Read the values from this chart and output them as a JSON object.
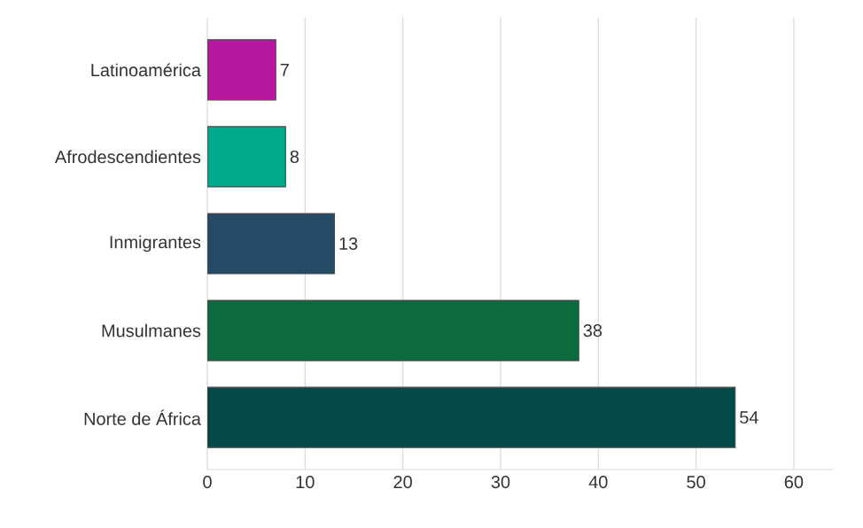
{
  "chart_data": {
    "type": "bar",
    "orientation": "horizontal",
    "categories": [
      "Latinoamérica",
      "Afrodescendientes",
      "Inmigrantes",
      "Musulmanes",
      "Norte de África"
    ],
    "values": [
      7,
      8,
      13,
      38,
      54
    ],
    "colors": [
      "#b5179e",
      "#00a98a",
      "#244a66",
      "#0b6b3f",
      "#054848"
    ],
    "xlim": [
      0,
      64
    ],
    "xticks": [
      0,
      10,
      20,
      30,
      40,
      50,
      60
    ],
    "grid": "x",
    "data_labels": true
  }
}
